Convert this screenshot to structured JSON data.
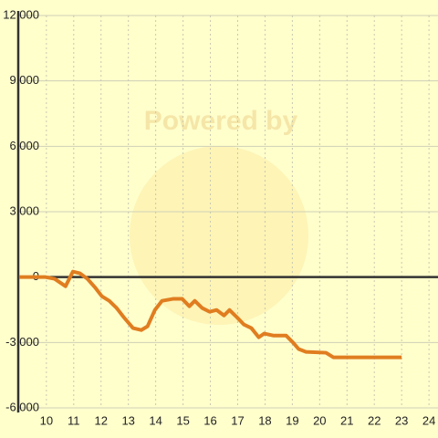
{
  "chart_data": {
    "type": "line",
    "watermark": "Powered by",
    "x": [
      9,
      9.97,
      10.3,
      10.7,
      10.97,
      11.23,
      11.5,
      11.77,
      12.03,
      12.3,
      12.57,
      12.83,
      13.17,
      13.47,
      13.7,
      13.97,
      14.23,
      14.63,
      14.97,
      15.23,
      15.43,
      15.7,
      15.97,
      16.23,
      16.5,
      16.7,
      16.97,
      17.23,
      17.5,
      17.77,
      17.97,
      18.3,
      18.77,
      19.03,
      19.23,
      19.5,
      20.23,
      20.5,
      23
    ],
    "series": [
      {
        "color": "#e07d20",
        "values": [
          0,
          0,
          -80,
          -420,
          250,
          170,
          -80,
          -460,
          -880,
          -1090,
          -1420,
          -1840,
          -2340,
          -2430,
          -2260,
          -1510,
          -1090,
          -1000,
          -1000,
          -1340,
          -1090,
          -1420,
          -1590,
          -1510,
          -1760,
          -1510,
          -1840,
          -2180,
          -2340,
          -2760,
          -2590,
          -2680,
          -2680,
          -3010,
          -3300,
          -3430,
          -3470,
          -3680,
          -3680
        ]
      }
    ],
    "xlim": [
      8.97,
      24.33
    ],
    "xticks": [
      10,
      11,
      12,
      13,
      14,
      15,
      16,
      17,
      18,
      19,
      20,
      21,
      22,
      23,
      24
    ],
    "ylim": [
      -6000,
      12000
    ],
    "yticks": [
      {
        "value": -6000,
        "label": "-6,000"
      },
      {
        "value": -3000,
        "label": "-3,000"
      },
      0,
      {
        "value": 3000,
        "label": "3,000"
      },
      {
        "value": 6000,
        "label": "6,000"
      },
      {
        "value": 9000,
        "label": "9,000"
      },
      {
        "value": 12000,
        "label": "12,000"
      }
    ],
    "grid": true
  }
}
